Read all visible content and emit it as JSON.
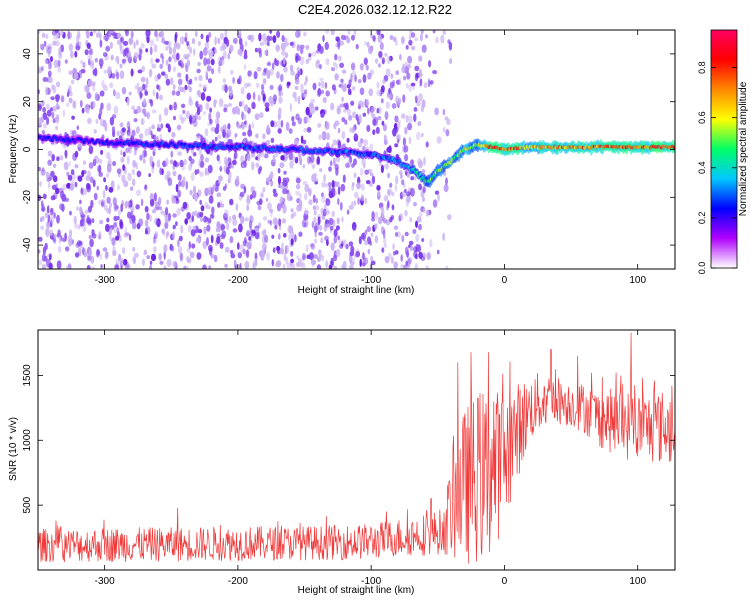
{
  "title": "C2E4.2026.032.12.12.R22",
  "colors": {
    "spectrum_low": "#c9b0f2",
    "spectrum_mid": "#8a4ff0",
    "spectrum_high": "#6a1fe6",
    "snr_line": "#f03a3a",
    "axis": "#000000"
  },
  "colorbar": {
    "label": "Normalized spectral amplitude",
    "ticks": [
      "0.0",
      "0.2",
      "0.4",
      "0.6",
      "0.8"
    ],
    "tick_values": [
      0.0,
      0.2,
      0.4,
      0.6,
      0.8
    ],
    "range": [
      0,
      0.95
    ],
    "colormap": [
      "#ffffff",
      "#b000ff",
      "#0000ff",
      "#00c8ff",
      "#00ff66",
      "#ffff00",
      "#ff8800",
      "#ff0000",
      "#ff0060"
    ]
  },
  "chart_data": [
    {
      "type": "heatmap",
      "title": "C2E4.2026.032.12.12.R22",
      "xlabel": "Height of straight line (km)",
      "ylabel": "Frequency (Hz)",
      "xlim": [
        -350,
        128
      ],
      "ylim": [
        -50,
        50
      ],
      "xticks": [
        -300,
        -200,
        -100,
        0,
        100
      ],
      "xtick_labels": [
        "-300",
        "-200",
        "-100",
        "0",
        "100"
      ],
      "yticks": [
        -40,
        -20,
        0,
        20,
        40
      ],
      "ytick_labels": [
        "-40",
        "-20",
        "0",
        "20",
        "40"
      ],
      "noise_region_x": [
        -350,
        -60
      ],
      "ridge": {
        "x": [
          -350,
          -300,
          -250,
          -200,
          -160,
          -130,
          -100,
          -80,
          -65,
          -58,
          -50,
          -40,
          -30,
          -20,
          -10,
          0,
          20,
          50,
          80,
          100,
          128
        ],
        "y": [
          5,
          3,
          2,
          1,
          0,
          -1,
          -2,
          -5,
          -10,
          -14,
          -9,
          -5,
          0,
          2,
          1,
          0,
          1,
          1,
          1,
          1,
          1
        ],
        "amplitude": [
          0.25,
          0.25,
          0.28,
          0.3,
          0.3,
          0.32,
          0.3,
          0.35,
          0.45,
          0.5,
          0.55,
          0.55,
          0.6,
          0.6,
          0.8,
          0.85,
          0.7,
          0.75,
          0.8,
          0.8,
          0.85
        ]
      }
    },
    {
      "type": "line",
      "xlabel": "Height of straight line (km)",
      "ylabel": "SNR (10 * v/v)",
      "xlim": [
        -350,
        128
      ],
      "ylim": [
        0,
        1850
      ],
      "xticks": [
        -300,
        -200,
        -100,
        0,
        100
      ],
      "xtick_labels": [
        "-300",
        "-200",
        "-100",
        "0",
        "100"
      ],
      "yticks": [
        500,
        1000,
        1500
      ],
      "ytick_labels": [
        "500",
        "1000",
        "1500"
      ],
      "series": [
        {
          "name": "SNR",
          "envelope_x": [
            -350,
            -300,
            -250,
            -200,
            -150,
            -100,
            -80,
            -60,
            -45,
            -40,
            -30,
            -20,
            -10,
            0,
            10,
            20,
            30,
            40,
            50,
            60,
            70,
            80,
            90,
            100,
            110,
            128
          ],
          "envelope_low": [
            60,
            60,
            65,
            70,
            75,
            80,
            100,
            110,
            120,
            80,
            30,
            50,
            80,
            350,
            700,
            1000,
            1080,
            1120,
            1100,
            1050,
            950,
            900,
            850,
            830,
            820,
            800
          ],
          "envelope_high": [
            320,
            330,
            330,
            340,
            340,
            360,
            400,
            440,
            480,
            900,
            1250,
            1400,
            1400,
            1400,
            1450,
            1500,
            1550,
            1500,
            1450,
            1450,
            1400,
            1400,
            1400,
            1380,
            1380,
            1400
          ],
          "spikes": [
            [
              -245,
              480
            ],
            [
              -55,
              550
            ],
            [
              -35,
              1600
            ],
            [
              -25,
              1680
            ],
            [
              -12,
              1680
            ],
            [
              -8,
              1300
            ],
            [
              95,
              1830
            ],
            [
              55,
              1650
            ],
            [
              35,
              1700
            ]
          ]
        }
      ]
    }
  ]
}
